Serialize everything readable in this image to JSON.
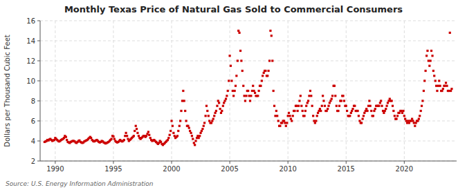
{
  "chart_data": {
    "type": "scatter",
    "title": "Monthly Texas Price of Natural Gas Sold to Commercial Consumers",
    "ylabel": "Dollars per Thousand Cubic Feet",
    "source": "Source: U.S. Energy Information Administration",
    "color": "#CC0000",
    "marker": "square",
    "grid": true,
    "xlim": [
      1988.7,
      2024.5
    ],
    "xticks": [
      1990,
      1995,
      2000,
      2005,
      2010,
      2015,
      2020
    ],
    "ylim": [
      2,
      16
    ],
    "yticks": [
      2,
      4,
      6,
      8,
      10,
      12,
      14,
      16
    ],
    "x": [
      1989.08,
      1989.17,
      1989.25,
      1989.33,
      1989.42,
      1989.5,
      1989.58,
      1989.67,
      1989.75,
      1989.83,
      1989.92,
      1990.0,
      1990.08,
      1990.17,
      1990.25,
      1990.33,
      1990.42,
      1990.5,
      1990.58,
      1990.67,
      1990.75,
      1990.83,
      1990.92,
      1991.0,
      1991.08,
      1991.17,
      1991.25,
      1991.33,
      1991.42,
      1991.5,
      1991.58,
      1991.67,
      1991.75,
      1991.83,
      1991.92,
      1992.0,
      1992.08,
      1992.17,
      1992.25,
      1992.33,
      1992.42,
      1992.5,
      1992.58,
      1992.67,
      1992.75,
      1992.83,
      1992.92,
      1993.0,
      1993.08,
      1993.17,
      1993.25,
      1993.33,
      1993.42,
      1993.5,
      1993.58,
      1993.67,
      1993.75,
      1993.83,
      1993.92,
      1994.0,
      1994.08,
      1994.17,
      1994.25,
      1994.33,
      1994.42,
      1994.5,
      1994.58,
      1994.67,
      1994.75,
      1994.83,
      1994.92,
      1995.0,
      1995.08,
      1995.17,
      1995.25,
      1995.33,
      1995.42,
      1995.5,
      1995.58,
      1995.67,
      1995.75,
      1995.83,
      1995.92,
      1996.0,
      1996.08,
      1996.17,
      1996.25,
      1996.33,
      1996.42,
      1996.5,
      1996.58,
      1996.67,
      1996.75,
      1996.83,
      1996.92,
      1997.0,
      1997.08,
      1997.17,
      1997.25,
      1997.33,
      1997.42,
      1997.5,
      1997.58,
      1997.67,
      1997.75,
      1997.83,
      1997.92,
      1998.0,
      1998.08,
      1998.17,
      1998.25,
      1998.33,
      1998.42,
      1998.5,
      1998.58,
      1998.67,
      1998.75,
      1998.83,
      1998.92,
      1999.0,
      1999.08,
      1999.17,
      1999.25,
      1999.33,
      1999.42,
      1999.5,
      1999.58,
      1999.67,
      1999.75,
      1999.83,
      1999.92,
      2000.0,
      2000.08,
      2000.17,
      2000.25,
      2000.33,
      2000.42,
      2000.5,
      2000.58,
      2000.67,
      2000.75,
      2000.83,
      2000.92,
      2001.0,
      2001.08,
      2001.17,
      2001.25,
      2001.33,
      2001.42,
      2001.5,
      2001.58,
      2001.67,
      2001.75,
      2001.83,
      2001.92,
      2002.0,
      2002.08,
      2002.17,
      2002.25,
      2002.33,
      2002.42,
      2002.5,
      2002.58,
      2002.67,
      2002.75,
      2002.83,
      2002.92,
      2003.0,
      2003.08,
      2003.17,
      2003.25,
      2003.33,
      2003.42,
      2003.5,
      2003.58,
      2003.67,
      2003.75,
      2003.83,
      2003.92,
      2004.0,
      2004.08,
      2004.17,
      2004.25,
      2004.33,
      2004.42,
      2004.5,
      2004.58,
      2004.67,
      2004.75,
      2004.83,
      2004.92,
      2005.0,
      2005.08,
      2005.17,
      2005.25,
      2005.33,
      2005.42,
      2005.5,
      2005.58,
      2005.67,
      2005.75,
      2005.83,
      2005.92,
      2006.0,
      2006.08,
      2006.17,
      2006.25,
      2006.33,
      2006.42,
      2006.5,
      2006.58,
      2006.67,
      2006.75,
      2006.83,
      2006.92,
      2007.0,
      2007.08,
      2007.17,
      2007.25,
      2007.33,
      2007.42,
      2007.5,
      2007.58,
      2007.67,
      2007.75,
      2007.83,
      2007.92,
      2008.0,
      2008.08,
      2008.17,
      2008.25,
      2008.33,
      2008.42,
      2008.5,
      2008.58,
      2008.67,
      2008.75,
      2008.83,
      2008.92,
      2009.0,
      2009.08,
      2009.17,
      2009.25,
      2009.33,
      2009.42,
      2009.5,
      2009.58,
      2009.67,
      2009.75,
      2009.83,
      2009.92,
      2010.0,
      2010.08,
      2010.17,
      2010.25,
      2010.33,
      2010.42,
      2010.5,
      2010.58,
      2010.67,
      2010.75,
      2010.83,
      2010.92,
      2011.0,
      2011.08,
      2011.17,
      2011.25,
      2011.33,
      2011.42,
      2011.5,
      2011.58,
      2011.67,
      2011.75,
      2011.83,
      2011.92,
      2012.0,
      2012.08,
      2012.17,
      2012.25,
      2012.33,
      2012.42,
      2012.5,
      2012.58,
      2012.67,
      2012.75,
      2012.83,
      2012.92,
      2013.0,
      2013.08,
      2013.17,
      2013.25,
      2013.33,
      2013.42,
      2013.5,
      2013.58,
      2013.67,
      2013.75,
      2013.83,
      2013.92,
      2014.0,
      2014.08,
      2014.17,
      2014.25,
      2014.33,
      2014.42,
      2014.5,
      2014.58,
      2014.67,
      2014.75,
      2014.83,
      2014.92,
      2015.0,
      2015.08,
      2015.17,
      2015.25,
      2015.33,
      2015.42,
      2015.5,
      2015.58,
      2015.67,
      2015.75,
      2015.83,
      2015.92,
      2016.0,
      2016.08,
      2016.17,
      2016.25,
      2016.33,
      2016.42,
      2016.5,
      2016.58,
      2016.67,
      2016.75,
      2016.83,
      2016.92,
      2017.0,
      2017.08,
      2017.17,
      2017.25,
      2017.33,
      2017.42,
      2017.5,
      2017.58,
      2017.67,
      2017.75,
      2017.83,
      2017.92,
      2018.0,
      2018.08,
      2018.17,
      2018.25,
      2018.33,
      2018.42,
      2018.5,
      2018.58,
      2018.67,
      2018.75,
      2018.83,
      2018.92,
      2019.0,
      2019.08,
      2019.17,
      2019.25,
      2019.33,
      2019.42,
      2019.5,
      2019.58,
      2019.67,
      2019.75,
      2019.83,
      2019.92,
      2020.0,
      2020.08,
      2020.17,
      2020.25,
      2020.33,
      2020.42,
      2020.5,
      2020.58,
      2020.67,
      2020.75,
      2020.83,
      2020.92,
      2021.0,
      2021.08,
      2021.17,
      2021.25,
      2021.33,
      2021.42,
      2021.5,
      2021.58,
      2021.67,
      2021.75,
      2021.83,
      2021.92,
      2022.0,
      2022.08,
      2022.17,
      2022.25,
      2022.33,
      2022.42,
      2022.5,
      2022.58,
      2022.67,
      2022.75,
      2022.83,
      2022.92,
      2023.0,
      2023.08,
      2023.17,
      2023.25,
      2023.33,
      2023.42,
      2023.5,
      2023.58,
      2023.67,
      2023.75,
      2023.83,
      2023.92,
      2024.0,
      2024.08
    ],
    "values": [
      3.9,
      3.95,
      4.0,
      4.1,
      4.05,
      4.15,
      4.2,
      4.1,
      4.0,
      4.05,
      4.1,
      4.3,
      4.2,
      4.1,
      4.0,
      3.95,
      4.0,
      4.1,
      4.15,
      4.2,
      4.3,
      4.5,
      4.4,
      4.1,
      3.9,
      3.85,
      3.8,
      3.9,
      3.95,
      4.0,
      4.0,
      3.95,
      3.85,
      3.8,
      3.9,
      4.0,
      4.05,
      3.9,
      3.85,
      3.8,
      3.85,
      3.95,
      4.0,
      4.05,
      4.1,
      4.2,
      4.3,
      4.4,
      4.3,
      4.1,
      4.0,
      3.95,
      4.0,
      4.05,
      4.1,
      4.0,
      3.9,
      3.85,
      3.9,
      4.0,
      3.95,
      3.85,
      3.8,
      3.75,
      3.8,
      3.85,
      3.9,
      4.0,
      4.1,
      4.2,
      4.5,
      4.45,
      4.2,
      4.0,
      3.9,
      3.85,
      3.9,
      4.0,
      4.1,
      4.0,
      3.95,
      4.0,
      4.1,
      4.5,
      4.8,
      4.5,
      4.2,
      4.0,
      4.1,
      4.2,
      4.3,
      4.4,
      4.5,
      5.0,
      5.5,
      5.2,
      4.8,
      4.5,
      4.3,
      4.2,
      4.3,
      4.4,
      4.5,
      4.5,
      4.4,
      4.5,
      4.7,
      4.9,
      4.6,
      4.3,
      4.1,
      4.0,
      4.05,
      4.1,
      4.0,
      3.9,
      3.8,
      3.7,
      3.8,
      4.0,
      3.9,
      3.7,
      3.6,
      3.7,
      3.8,
      3.9,
      4.0,
      4.1,
      4.3,
      4.6,
      5.0,
      6.0,
      5.5,
      4.8,
      4.5,
      4.3,
      4.4,
      4.5,
      5.0,
      5.5,
      6.0,
      7.0,
      8.0,
      9.0,
      8.0,
      7.0,
      6.0,
      5.5,
      5.5,
      5.3,
      5.0,
      4.8,
      4.5,
      4.2,
      3.8,
      3.6,
      4.0,
      4.3,
      4.5,
      4.3,
      4.5,
      4.8,
      5.0,
      5.2,
      5.5,
      5.8,
      6.5,
      7.5,
      7.0,
      6.5,
      6.0,
      5.8,
      5.8,
      6.0,
      6.2,
      6.5,
      6.8,
      7.0,
      7.5,
      8.0,
      7.8,
      7.2,
      6.8,
      7.0,
      7.5,
      7.8,
      8.0,
      8.2,
      8.5,
      9.0,
      10.0,
      12.5,
      11.5,
      10.0,
      9.0,
      8.5,
      9.0,
      9.5,
      10.5,
      12.0,
      15.0,
      14.8,
      13.0,
      12.0,
      11.0,
      9.5,
      8.5,
      8.0,
      8.5,
      9.0,
      9.0,
      8.5,
      8.0,
      8.5,
      9.0,
      9.5,
      9.0,
      8.8,
      8.5,
      8.5,
      8.5,
      9.0,
      9.5,
      9.5,
      10.0,
      10.5,
      10.8,
      11.0,
      11.0,
      10.5,
      10.5,
      11.0,
      12.0,
      15.0,
      14.5,
      12.0,
      9.0,
      7.5,
      6.5,
      7.0,
      6.5,
      6.0,
      5.5,
      5.5,
      5.8,
      5.8,
      6.0,
      6.0,
      5.8,
      5.5,
      5.8,
      6.5,
      6.8,
      6.5,
      6.2,
      6.0,
      6.5,
      7.0,
      7.0,
      7.5,
      7.5,
      7.0,
      7.5,
      8.0,
      8.5,
      7.5,
      7.0,
      6.5,
      6.5,
      7.0,
      7.5,
      7.8,
      8.0,
      8.5,
      9.0,
      8.5,
      7.5,
      6.5,
      6.0,
      5.8,
      6.0,
      6.5,
      6.8,
      7.0,
      7.2,
      7.0,
      7.5,
      8.5,
      8.0,
      7.5,
      7.0,
      7.0,
      7.2,
      7.5,
      7.8,
      8.0,
      8.2,
      8.5,
      9.5,
      9.5,
      8.5,
      7.5,
      7.0,
      7.0,
      7.5,
      8.0,
      8.0,
      8.5,
      8.5,
      8.0,
      7.5,
      7.5,
      7.0,
      6.5,
      6.5,
      6.5,
      6.8,
      7.0,
      7.2,
      7.5,
      7.5,
      7.0,
      7.0,
      7.0,
      6.5,
      6.0,
      5.8,
      5.8,
      6.2,
      6.5,
      6.8,
      7.0,
      7.2,
      7.0,
      7.5,
      8.0,
      7.5,
      7.0,
      6.5,
      6.5,
      7.0,
      7.2,
      7.5,
      7.5,
      7.5,
      7.5,
      7.8,
      8.0,
      7.5,
      7.0,
      6.8,
      7.0,
      7.2,
      7.5,
      7.8,
      8.0,
      8.2,
      8.0,
      8.0,
      7.5,
      7.0,
      6.5,
      6.2,
      6.2,
      6.5,
      6.8,
      6.8,
      7.0,
      7.0,
      6.8,
      7.0,
      6.5,
      6.2,
      6.0,
      5.8,
      6.0,
      5.8,
      6.0,
      6.0,
      6.2,
      6.0,
      5.8,
      5.5,
      5.8,
      6.0,
      6.0,
      6.2,
      6.5,
      7.0,
      7.5,
      8.0,
      9.0,
      10.0,
      11.0,
      12.5,
      13.0,
      12.0,
      11.5,
      12.0,
      13.0,
      12.5,
      11.0,
      10.5,
      10.0,
      9.5,
      9.0,
      9.5,
      10.0,
      9.5,
      9.0,
      9.0,
      9.2,
      9.5,
      9.5,
      9.8,
      9.5,
      9.0,
      9.0,
      14.8,
      9.0,
      9.2
    ]
  }
}
